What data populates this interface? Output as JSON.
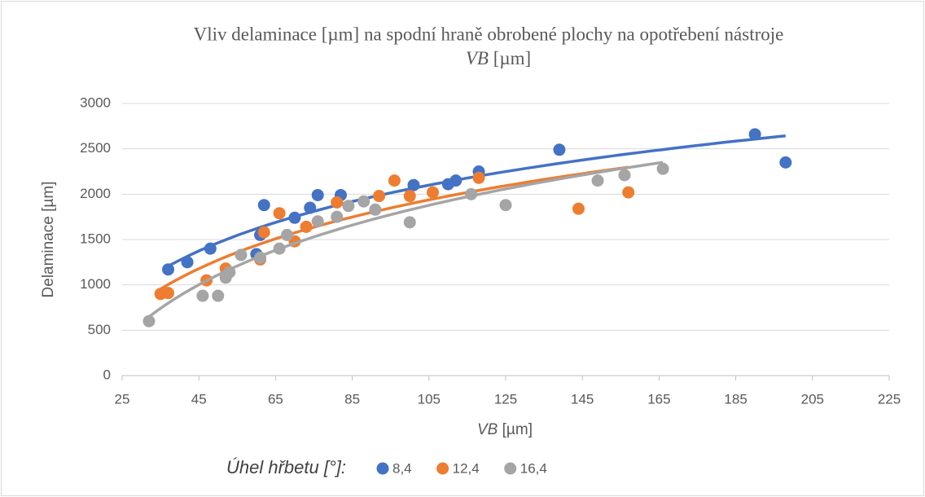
{
  "chart_data": {
    "type": "scatter",
    "title": [
      "Vliv delaminace [µm] na spodní hraně obrobené plochy na opotřebení nástroje",
      "VB",
      "[µm]"
    ],
    "x_label": [
      "VB",
      "[µm]"
    ],
    "y_label": "Delaminace [µm]",
    "legend_title": "Úhel hřbetu [°]:",
    "trendline": "logarithmic",
    "grid": true,
    "legend": "bottom",
    "xlim": [
      25,
      225
    ],
    "xticks": [
      25,
      45,
      65,
      85,
      105,
      125,
      145,
      165,
      185,
      205,
      225
    ],
    "ylim": [
      0,
      3000
    ],
    "yticks": [
      0,
      500,
      1000,
      1500,
      2000,
      2500,
      3000
    ],
    "series": [
      {
        "name": "8,4",
        "color": "#4472c4",
        "x": [
          37,
          42,
          48,
          62,
          61,
          60,
          70,
          74,
          76,
          82,
          101,
          110,
          112,
          118,
          139,
          190,
          198
        ],
        "values": [
          1170,
          1250,
          1400,
          1880,
          1550,
          1340,
          1740,
          1850,
          1990,
          1990,
          2100,
          2110,
          2150,
          2250,
          2490,
          2660,
          2350
        ]
      },
      {
        "name": "12,4",
        "color": "#ed7d31",
        "x": [
          35,
          37,
          47,
          52,
          62,
          61,
          66,
          70,
          73,
          81,
          92,
          96,
          100,
          106,
          118,
          144,
          157
        ],
        "values": [
          900,
          910,
          1050,
          1180,
          1580,
          1280,
          1790,
          1480,
          1640,
          1910,
          1980,
          2150,
          1980,
          2020,
          2180,
          1840,
          2020
        ]
      },
      {
        "name": "16,4",
        "color": "#a5a5a5",
        "x": [
          32,
          46,
          50,
          52,
          53,
          56,
          61,
          66,
          68,
          76,
          81,
          84,
          88,
          91,
          100,
          116,
          125,
          149,
          156,
          166
        ],
        "values": [
          600,
          880,
          880,
          1080,
          1140,
          1330,
          1300,
          1400,
          1550,
          1700,
          1750,
          1870,
          1920,
          1830,
          1690,
          2000,
          1880,
          2150,
          2210,
          2280
        ]
      }
    ]
  }
}
